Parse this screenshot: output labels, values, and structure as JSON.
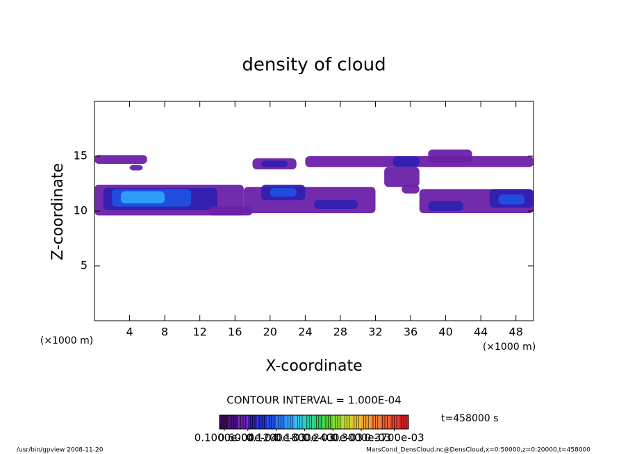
{
  "chart_data": {
    "type": "contour",
    "title": "density of cloud",
    "x_label": "X-coordinate",
    "y_label": "Z-coordinate",
    "x_unit": "(×1000 m)",
    "y_unit": "(×1000 m)",
    "xlim": [
      0,
      50
    ],
    "ylim": [
      0,
      20
    ],
    "xticks": [
      4,
      8,
      12,
      16,
      20,
      24,
      28,
      32,
      36,
      40,
      44,
      48
    ],
    "yticks": [
      5,
      10,
      15
    ],
    "regions": [
      {
        "x": [
          0,
          6
        ],
        "z": [
          14.3,
          15.1
        ],
        "value": 5e-05
      },
      {
        "x": [
          4,
          5.5
        ],
        "z": [
          13.7,
          14.2
        ],
        "value": 5e-05
      },
      {
        "x": [
          0,
          17
        ],
        "z": [
          9.6,
          12.4
        ],
        "value": 5e-05
      },
      {
        "x": [
          1,
          14
        ],
        "z": [
          10.1,
          12.1
        ],
        "value": 7e-05
      },
      {
        "x": [
          2,
          11
        ],
        "z": [
          10.4,
          12.0
        ],
        "value": 0.00011
      },
      {
        "x": [
          3,
          8
        ],
        "z": [
          10.7,
          11.8
        ],
        "value": 0.00015
      },
      {
        "x": [
          17,
          32
        ],
        "z": [
          9.8,
          12.2
        ],
        "value": 5e-05
      },
      {
        "x": [
          19,
          24
        ],
        "z": [
          11.0,
          12.4
        ],
        "value": 7e-05
      },
      {
        "x": [
          20,
          23
        ],
        "z": [
          11.3,
          12.1
        ],
        "value": 0.00011
      },
      {
        "x": [
          25,
          30
        ],
        "z": [
          10.2,
          11.0
        ],
        "value": 7e-05
      },
      {
        "x": [
          13,
          18
        ],
        "z": [
          9.6,
          10.4
        ],
        "value": 5e-05
      },
      {
        "x": [
          18,
          23
        ],
        "z": [
          13.8,
          14.8
        ],
        "value": 5e-05
      },
      {
        "x": [
          19,
          22
        ],
        "z": [
          14.0,
          14.6
        ],
        "value": 7e-05
      },
      {
        "x": [
          24,
          50
        ],
        "z": [
          14.0,
          15.0
        ],
        "value": 5e-05
      },
      {
        "x": [
          38,
          43
        ],
        "z": [
          14.4,
          15.6
        ],
        "value": 5e-05
      },
      {
        "x": [
          34,
          37
        ],
        "z": [
          14.0,
          15.0
        ],
        "value": 7e-05
      },
      {
        "x": [
          33,
          37
        ],
        "z": [
          12.2,
          14.0
        ],
        "value": 5e-05
      },
      {
        "x": [
          35,
          37
        ],
        "z": [
          11.6,
          12.4
        ],
        "value": 5e-05
      },
      {
        "x": [
          37,
          50
        ],
        "z": [
          9.8,
          12.0
        ],
        "value": 5e-05
      },
      {
        "x": [
          38,
          42
        ],
        "z": [
          10.0,
          10.9
        ],
        "value": 7e-05
      },
      {
        "x": [
          45,
          50
        ],
        "z": [
          10.3,
          12.0
        ],
        "value": 7e-05
      },
      {
        "x": [
          46,
          49
        ],
        "z": [
          10.6,
          11.5
        ],
        "value": 0.00011
      }
    ],
    "contour_interval": "CONTOUR INTERVAL = 1.000E-04",
    "time_label": "t=458000 s",
    "colorbar": {
      "clim": [
        0,
        0.0004
      ],
      "levels": [
        0,
        2e-05,
        4e-05,
        6e-05,
        8e-05,
        0.0001,
        0.00012,
        0.00014,
        0.00016,
        0.00018,
        0.0002,
        0.00022,
        0.00024,
        0.00026,
        0.00028,
        0.0003,
        0.00032,
        0.00034,
        0.00036,
        0.00038,
        0.0004
      ],
      "colors": [
        "#3a0a5a",
        "#4a1080",
        "#6a20a8",
        "#3020b0",
        "#2030c8",
        "#2050e0",
        "#2878f0",
        "#30a0f8",
        "#30c8e0",
        "#30d0a0",
        "#30d060",
        "#50d030",
        "#90d830",
        "#c8d830",
        "#e8c030",
        "#f0a030",
        "#f08030",
        "#e86030",
        "#e04030",
        "#d02020"
      ],
      "ticks": [
        {
          "value": 1e-05,
          "label": "0.1000e-04"
        },
        {
          "value": 6e-05,
          "label": "0.6000e-04"
        },
        {
          "value": 0.00012,
          "label": "0.1200e-03"
        },
        {
          "value": 0.00018,
          "label": "0.1800e-03"
        },
        {
          "value": 0.00024,
          "label": "0.2400e-03"
        },
        {
          "value": 0.0003,
          "label": "0.3000e-03"
        },
        {
          "value": 0.00037,
          "label": "0.3700e-03"
        }
      ]
    },
    "footer_left": "/usr/bin/gpview   2008-11-20",
    "footer_right": "MarsCond_DensCloud.nc@DensCloud,x=0:50000,z=0:20000,t=458000"
  }
}
